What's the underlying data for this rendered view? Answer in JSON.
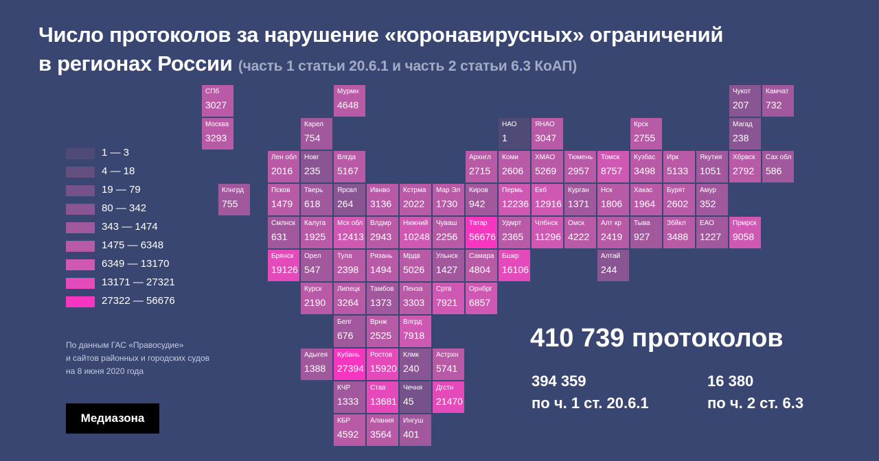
{
  "title": {
    "line1": "Число протоколов за нарушение «коронавирусных» ограничений",
    "line2": "в регионах России",
    "subtitle": "(часть 1 статьи 20.6.1 и часть 2 статьи 6.3 КоАП)"
  },
  "legend": [
    {
      "label": "1 — 3",
      "color": "#4f4b76"
    },
    {
      "label": "4 — 18",
      "color": "#624e7f"
    },
    {
      "label": "19 — 79",
      "color": "#76528a"
    },
    {
      "label": "80 — 342",
      "color": "#8a5593"
    },
    {
      "label": "343 — 1474",
      "color": "#a1589c"
    },
    {
      "label": "1475 — 6348",
      "color": "#b95aa6"
    },
    {
      "label": "6349 — 13170",
      "color": "#cf58b2"
    },
    {
      "label": "13171 — 27321",
      "color": "#e44ab9"
    },
    {
      "label": "27322 — 56676",
      "color": "#f636c0"
    }
  ],
  "regions": [
    {
      "name": "СПб",
      "value": "3027",
      "col": 0,
      "row": 0
    },
    {
      "name": "Москва",
      "value": "3293",
      "col": 0,
      "row": 1
    },
    {
      "name": "Мурмн",
      "value": "4648",
      "col": 4,
      "row": 0
    },
    {
      "name": "Чукот",
      "value": "207",
      "col": 16,
      "row": 0
    },
    {
      "name": "Камчат",
      "value": "732",
      "col": 17,
      "row": 0
    },
    {
      "name": "Карел",
      "value": "754",
      "col": 3,
      "row": 1
    },
    {
      "name": "НАО",
      "value": "1",
      "col": 9,
      "row": 1
    },
    {
      "name": "ЯНАО",
      "value": "3047",
      "col": 10,
      "row": 1
    },
    {
      "name": "Крск",
      "value": "2755",
      "col": 13,
      "row": 1
    },
    {
      "name": "Магад",
      "value": "238",
      "col": 16,
      "row": 1
    },
    {
      "name": "Лен обл",
      "value": "2016",
      "col": 2,
      "row": 2
    },
    {
      "name": "Новг",
      "value": "235",
      "col": 3,
      "row": 2
    },
    {
      "name": "Влгда",
      "value": "5167",
      "col": 4,
      "row": 2
    },
    {
      "name": "Архнгл",
      "value": "2715",
      "col": 8,
      "row": 2
    },
    {
      "name": "Коми",
      "value": "2606",
      "col": 9,
      "row": 2
    },
    {
      "name": "ХМАО",
      "value": "5269",
      "col": 10,
      "row": 2
    },
    {
      "name": "Тюмень",
      "value": "2957",
      "col": 11,
      "row": 2
    },
    {
      "name": "Томск",
      "value": "8757",
      "col": 12,
      "row": 2
    },
    {
      "name": "Кузбас",
      "value": "3498",
      "col": 13,
      "row": 2
    },
    {
      "name": "Ирк",
      "value": "5133",
      "col": 14,
      "row": 2
    },
    {
      "name": "Якутия",
      "value": "1051",
      "col": 15,
      "row": 2
    },
    {
      "name": "Хбрвск",
      "value": "2792",
      "col": 16,
      "row": 2
    },
    {
      "name": "Сах обл",
      "value": "586",
      "col": 17,
      "row": 2
    },
    {
      "name": "Клнгрд",
      "value": "755",
      "col": 0.5,
      "row": 3
    },
    {
      "name": "Псков",
      "value": "1479",
      "col": 2,
      "row": 3
    },
    {
      "name": "Тверь",
      "value": "618",
      "col": 3,
      "row": 3
    },
    {
      "name": "Ярсвл",
      "value": "264",
      "col": 4,
      "row": 3
    },
    {
      "name": "Ивнво",
      "value": "3136",
      "col": 5,
      "row": 3
    },
    {
      "name": "Кстрма",
      "value": "2022",
      "col": 6,
      "row": 3
    },
    {
      "name": "Мар Эл",
      "value": "1730",
      "col": 7,
      "row": 3
    },
    {
      "name": "Киров",
      "value": "942",
      "col": 8,
      "row": 3
    },
    {
      "name": "Пермь",
      "value": "12236",
      "col": 9,
      "row": 3
    },
    {
      "name": "Екб",
      "value": "12916",
      "col": 10,
      "row": 3
    },
    {
      "name": "Курган",
      "value": "1371",
      "col": 11,
      "row": 3
    },
    {
      "name": "Нск",
      "value": "1806",
      "col": 12,
      "row": 3
    },
    {
      "name": "Хакас",
      "value": "1964",
      "col": 13,
      "row": 3
    },
    {
      "name": "Бурят",
      "value": "2602",
      "col": 14,
      "row": 3
    },
    {
      "name": "Амур",
      "value": "352",
      "col": 15,
      "row": 3
    },
    {
      "name": "Смлнск",
      "value": "631",
      "col": 2,
      "row": 4
    },
    {
      "name": "Калуга",
      "value": "1925",
      "col": 3,
      "row": 4
    },
    {
      "name": "Мск обл",
      "value": "12413",
      "col": 4,
      "row": 4
    },
    {
      "name": "Влдмр",
      "value": "2943",
      "col": 5,
      "row": 4
    },
    {
      "name": "Нижний",
      "value": "10248",
      "col": 6,
      "row": 4
    },
    {
      "name": "Чуваш",
      "value": "2256",
      "col": 7,
      "row": 4
    },
    {
      "name": "Татар",
      "value": "56676",
      "col": 8,
      "row": 4
    },
    {
      "name": "Удмрт",
      "value": "2365",
      "col": 9,
      "row": 4
    },
    {
      "name": "Члбнск",
      "value": "11296",
      "col": 10,
      "row": 4
    },
    {
      "name": "Омск",
      "value": "4222",
      "col": 11,
      "row": 4
    },
    {
      "name": "Алт кр",
      "value": "2419",
      "col": 12,
      "row": 4
    },
    {
      "name": "Тыва",
      "value": "927",
      "col": 13,
      "row": 4
    },
    {
      "name": "Збйкл",
      "value": "3488",
      "col": 14,
      "row": 4
    },
    {
      "name": "ЕАО",
      "value": "1227",
      "col": 15,
      "row": 4
    },
    {
      "name": "Прмрск",
      "value": "9058",
      "col": 16,
      "row": 4
    },
    {
      "name": "Брянск",
      "value": "19126",
      "col": 2,
      "row": 5
    },
    {
      "name": "Орел",
      "value": "547",
      "col": 3,
      "row": 5
    },
    {
      "name": "Тула",
      "value": "2398",
      "col": 4,
      "row": 5
    },
    {
      "name": "Рязань",
      "value": "1494",
      "col": 5,
      "row": 5
    },
    {
      "name": "Мрдв",
      "value": "5026",
      "col": 6,
      "row": 5
    },
    {
      "name": "Ульнск",
      "value": "1427",
      "col": 7,
      "row": 5
    },
    {
      "name": "Самара",
      "value": "4804",
      "col": 8,
      "row": 5
    },
    {
      "name": "Бшкр",
      "value": "16106",
      "col": 9,
      "row": 5
    },
    {
      "name": "Алтай",
      "value": "244",
      "col": 12,
      "row": 5
    },
    {
      "name": "Курск",
      "value": "2190",
      "col": 3,
      "row": 6
    },
    {
      "name": "Липецк",
      "value": "3264",
      "col": 4,
      "row": 6
    },
    {
      "name": "Тамбов",
      "value": "1373",
      "col": 5,
      "row": 6
    },
    {
      "name": "Пенза",
      "value": "3303",
      "col": 6,
      "row": 6
    },
    {
      "name": "Сртв",
      "value": "7921",
      "col": 7,
      "row": 6
    },
    {
      "name": "Орнбрг",
      "value": "6857",
      "col": 8,
      "row": 6
    },
    {
      "name": "Белг",
      "value": "676",
      "col": 4,
      "row": 7
    },
    {
      "name": "Врнж",
      "value": "2525",
      "col": 5,
      "row": 7
    },
    {
      "name": "Влгрд",
      "value": "7918",
      "col": 6,
      "row": 7
    },
    {
      "name": "Адыгея",
      "value": "1388",
      "col": 3,
      "row": 8
    },
    {
      "name": "Кубань",
      "value": "27394",
      "col": 4,
      "row": 8
    },
    {
      "name": "Ростов",
      "value": "15920",
      "col": 5,
      "row": 8
    },
    {
      "name": "Клмк",
      "value": "240",
      "col": 6,
      "row": 8
    },
    {
      "name": "Астрхн",
      "value": "5741",
      "col": 7,
      "row": 8
    },
    {
      "name": "КЧР",
      "value": "1333",
      "col": 4,
      "row": 9
    },
    {
      "name": "Став",
      "value": "13681",
      "col": 5,
      "row": 9
    },
    {
      "name": "Чечня",
      "value": "45",
      "col": 6,
      "row": 9
    },
    {
      "name": "Дгстн",
      "value": "21470",
      "col": 7,
      "row": 9
    },
    {
      "name": "КБР",
      "value": "4592",
      "col": 4,
      "row": 10
    },
    {
      "name": "Алания",
      "value": "3564",
      "col": 5,
      "row": 10
    },
    {
      "name": "Ингуш",
      "value": "401",
      "col": 6,
      "row": 10
    }
  ],
  "source": {
    "line1": "По данным ГАС «Правосудие»",
    "line2": "и сайтов районных и городских судов",
    "line3": "на 8 июня 2020 года"
  },
  "logo": "Медиазона",
  "totals": {
    "total": "410 739 протоколов",
    "part1_value": "394 359",
    "part1_label": "по ч. 1 ст. 20.6.1",
    "part2_value": "16 380",
    "part2_label": "по ч. 2 ст. 6.3"
  }
}
